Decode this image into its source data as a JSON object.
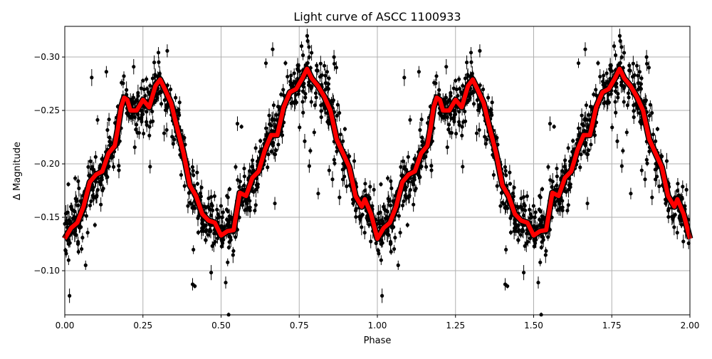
{
  "chart_data": {
    "type": "scatter",
    "title": "Light curve of ASCC 1100933",
    "xlabel": "Phase",
    "ylabel": "Δ Magnitude",
    "xlim": [
      0.0,
      2.0
    ],
    "ylim": [
      -0.0587,
      -0.3287
    ],
    "y_inverted": true,
    "grid": true,
    "xticks": [
      0.0,
      0.25,
      0.5,
      0.75,
      1.0,
      1.25,
      1.5,
      1.75,
      2.0
    ],
    "xtick_labels": [
      "0.00",
      "0.25",
      "0.50",
      "0.75",
      "1.00",
      "1.25",
      "1.50",
      "1.75",
      "2.00"
    ],
    "yticks": [
      -0.3,
      -0.25,
      -0.2,
      -0.15,
      -0.1
    ],
    "ytick_labels": [
      "−0.30",
      "−0.25",
      "−0.20",
      "−0.15",
      "−0.10"
    ],
    "colors": {
      "observations": "#000000",
      "model": "#ff0000",
      "grid": "#b0b0b0"
    },
    "series": [
      {
        "kind": "errorbar-points",
        "note_repeat": "phase-folded observations shown twice (0–1 and 1–2)"
      },
      {
        "kind": "line",
        "phase": [
          0.0,
          0.02,
          0.04,
          0.06,
          0.08,
          0.1,
          0.12,
          0.14,
          0.16,
          0.17,
          0.18,
          0.19,
          0.2,
          0.21,
          0.23,
          0.25,
          0.27,
          0.29,
          0.305,
          0.32,
          0.34,
          0.36,
          0.38,
          0.4,
          0.42,
          0.44,
          0.46,
          0.48,
          0.5,
          0.52,
          0.54,
          0.56,
          0.58,
          0.6,
          0.62,
          0.64,
          0.66,
          0.68,
          0.7,
          0.72,
          0.74,
          0.76,
          0.775,
          0.79,
          0.81,
          0.83,
          0.85,
          0.87,
          0.89,
          0.91,
          0.93,
          0.95,
          0.96,
          0.98,
          1.0
        ],
        "magnitude": [
          -0.13,
          -0.14,
          -0.145,
          -0.16,
          -0.183,
          -0.19,
          -0.193,
          -0.21,
          -0.217,
          -0.233,
          -0.253,
          -0.262,
          -0.26,
          -0.25,
          -0.25,
          -0.26,
          -0.253,
          -0.273,
          -0.279,
          -0.27,
          -0.257,
          -0.233,
          -0.21,
          -0.18,
          -0.17,
          -0.153,
          -0.147,
          -0.145,
          -0.133,
          -0.137,
          -0.138,
          -0.173,
          -0.17,
          -0.187,
          -0.193,
          -0.213,
          -0.227,
          -0.227,
          -0.253,
          -0.267,
          -0.27,
          -0.28,
          -0.289,
          -0.28,
          -0.273,
          -0.263,
          -0.25,
          -0.223,
          -0.21,
          -0.197,
          -0.17,
          -0.16,
          -0.167,
          -0.153,
          -0.13
        ]
      }
    ]
  }
}
